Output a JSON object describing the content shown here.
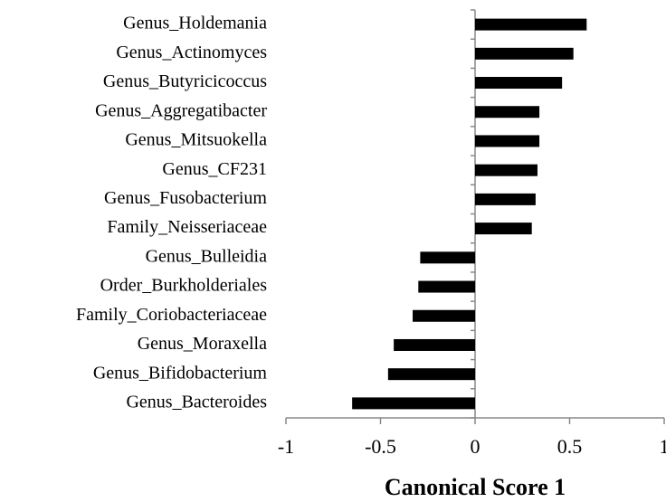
{
  "chart_data": {
    "type": "hbar",
    "x_label": "Canonical Score 1",
    "categories": [
      "Genus_Holdemania",
      "Genus_Actinomyces",
      "Genus_Butyricicoccus",
      "Genus_Aggregatibacter",
      "Genus_Mitsuokella",
      "Genus_CF231",
      "Genus_Fusobacterium",
      "Family_Neisseriaceae",
      "Genus_Bulleidia",
      "Order_Burkholderiales",
      "Family_Coriobacteriaceae",
      "Genus_Moraxella",
      "Genus_Bifidobacterium",
      "Genus_Bacteroides"
    ],
    "values": [
      0.59,
      0.52,
      0.46,
      0.34,
      0.34,
      0.33,
      0.32,
      0.3,
      -0.29,
      -0.3,
      -0.33,
      -0.43,
      -0.46,
      -0.65
    ],
    "color": "#000000",
    "xlim": [
      -1,
      1
    ],
    "xticks": [
      -1,
      -0.5,
      0,
      0.5,
      1
    ],
    "grid": false
  }
}
